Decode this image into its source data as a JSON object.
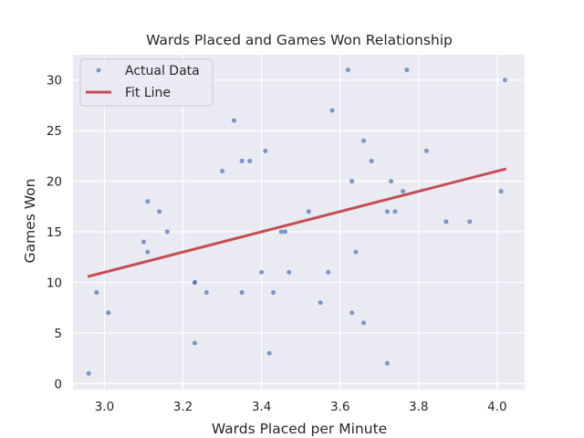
{
  "chart_data": {
    "type": "scatter",
    "title": "Wards Placed and Games Won Relationship",
    "xlabel": "Wards Placed per Minute",
    "ylabel": "Games Won",
    "xlim": [
      2.92,
      4.07
    ],
    "ylim": [
      -0.6,
      32.5
    ],
    "x_ticks": [
      3.0,
      3.2,
      3.4,
      3.6,
      3.8,
      4.0
    ],
    "x_tick_labels": [
      "3.0",
      "3.2",
      "3.4",
      "3.6",
      "3.8",
      "4.0"
    ],
    "y_ticks": [
      0,
      5,
      10,
      15,
      20,
      25,
      30
    ],
    "y_tick_labels": [
      "0",
      "5",
      "10",
      "15",
      "20",
      "25",
      "30"
    ],
    "grid": true,
    "legend_position": "top-left",
    "series": [
      {
        "name": "Actual Data",
        "kind": "scatter",
        "color": "#4c72b0",
        "points": [
          [
            2.96,
            1
          ],
          [
            2.98,
            9
          ],
          [
            3.01,
            7
          ],
          [
            3.1,
            14
          ],
          [
            3.11,
            18
          ],
          [
            3.11,
            13
          ],
          [
            3.14,
            17
          ],
          [
            3.16,
            15
          ],
          [
            3.23,
            10
          ],
          [
            3.23,
            10
          ],
          [
            3.23,
            4
          ],
          [
            3.26,
            9
          ],
          [
            3.3,
            21
          ],
          [
            3.33,
            26
          ],
          [
            3.35,
            22
          ],
          [
            3.35,
            9
          ],
          [
            3.37,
            22
          ],
          [
            3.4,
            11
          ],
          [
            3.41,
            23
          ],
          [
            3.42,
            3
          ],
          [
            3.43,
            9
          ],
          [
            3.45,
            15
          ],
          [
            3.46,
            15
          ],
          [
            3.47,
            11
          ],
          [
            3.52,
            17
          ],
          [
            3.55,
            8
          ],
          [
            3.57,
            11
          ],
          [
            3.58,
            27
          ],
          [
            3.62,
            31
          ],
          [
            3.63,
            20
          ],
          [
            3.63,
            7
          ],
          [
            3.64,
            13
          ],
          [
            3.66,
            24
          ],
          [
            3.66,
            6
          ],
          [
            3.68,
            22
          ],
          [
            3.72,
            17
          ],
          [
            3.72,
            2
          ],
          [
            3.73,
            20
          ],
          [
            3.74,
            17
          ],
          [
            3.76,
            19
          ],
          [
            3.77,
            31
          ],
          [
            3.82,
            23
          ],
          [
            3.87,
            16
          ],
          [
            3.93,
            16
          ],
          [
            4.01,
            19
          ],
          [
            4.02,
            30
          ]
        ]
      },
      {
        "name": "Fit Line",
        "kind": "line",
        "color": "#c44e52",
        "points": [
          [
            2.96,
            10.6
          ],
          [
            4.02,
            21.2
          ]
        ]
      }
    ]
  }
}
